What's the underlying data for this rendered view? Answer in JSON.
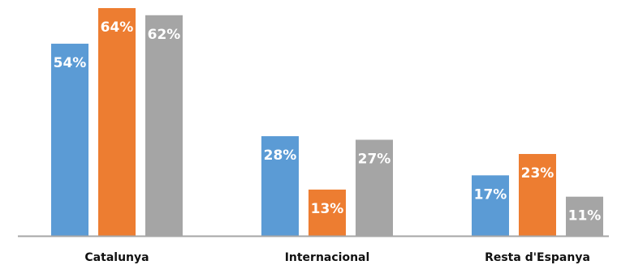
{
  "chart_data": {
    "type": "bar",
    "categories": [
      "Catalunya",
      "Internacional",
      "Resta d'Espanya"
    ],
    "series": [
      {
        "values": [
          54,
          28,
          17
        ],
        "color": "#5b9bd5",
        "labels": [
          "54%",
          "28%",
          "17%"
        ]
      },
      {
        "values": [
          64,
          13,
          23
        ],
        "color": "#ed7d31",
        "labels": [
          "64%",
          "13%",
          "23%"
        ]
      },
      {
        "values": [
          62,
          27,
          11
        ],
        "color": "#a5a5a5",
        "labels": [
          "62%",
          "27%",
          "11%"
        ]
      }
    ],
    "ylim": [
      0,
      64
    ],
    "axis_color": "#a6a6a6",
    "grid": false,
    "legend": "none"
  }
}
